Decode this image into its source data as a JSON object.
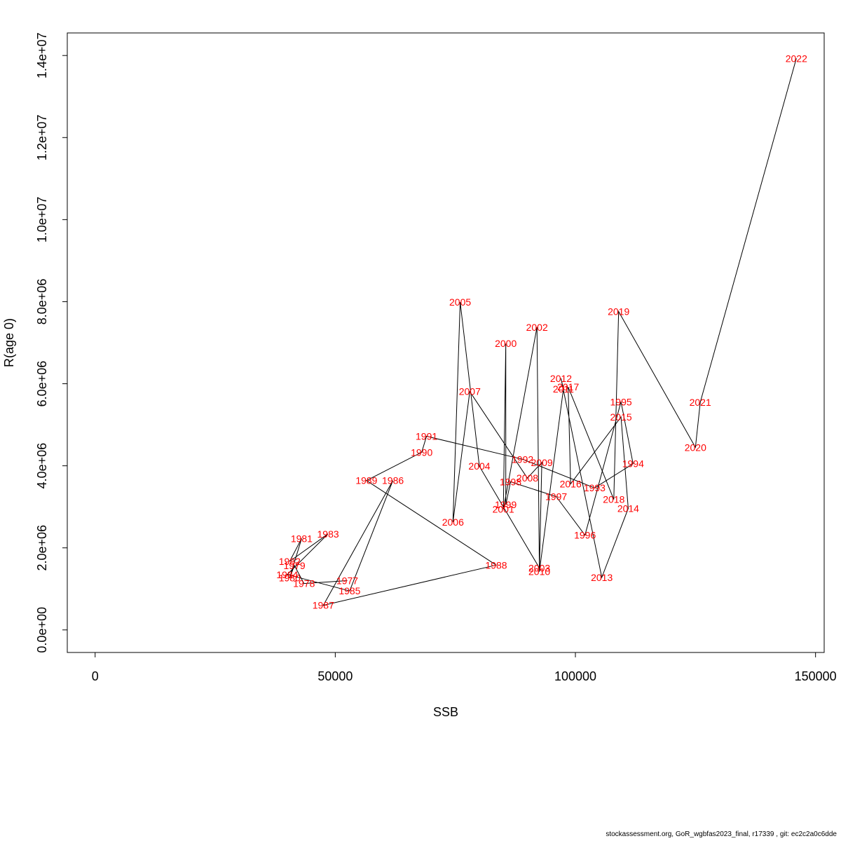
{
  "chart_data": {
    "type": "line",
    "xlabel": "SSB",
    "ylabel": "R(age 0)",
    "xlim": [
      -5800,
      151800
    ],
    "ylim": [
      -550000,
      14550000
    ],
    "x_ticks": [
      0,
      50000,
      100000,
      150000
    ],
    "x_tick_labels": [
      "0",
      "50000",
      "100000",
      "150000"
    ],
    "y_ticks": [
      0,
      2000000,
      4000000,
      6000000,
      8000000,
      10000000,
      12000000,
      14000000
    ],
    "y_tick_labels": [
      "0.0e+00",
      "2.0e+06",
      "4.0e+06",
      "6.0e+06",
      "8.0e+06",
      "1.0e+07",
      "1.2e+07",
      "1.4e+07"
    ],
    "grid": false,
    "legend": "none",
    "line_color": "#000000",
    "label_color": "#ff0000",
    "points": [
      {
        "year": "1977",
        "x": 52500,
        "y": 1200000
      },
      {
        "year": "1978",
        "x": 43500,
        "y": 1130000
      },
      {
        "year": "1979",
        "x": 41500,
        "y": 1570000
      },
      {
        "year": "1980",
        "x": 40500,
        "y": 1270000
      },
      {
        "year": "1981",
        "x": 43000,
        "y": 2230000
      },
      {
        "year": "1982",
        "x": 40500,
        "y": 1670000
      },
      {
        "year": "1983",
        "x": 48500,
        "y": 2340000
      },
      {
        "year": "1984",
        "x": 40000,
        "y": 1350000
      },
      {
        "year": "1985",
        "x": 53000,
        "y": 950000
      },
      {
        "year": "1986",
        "x": 62000,
        "y": 3640000
      },
      {
        "year": "1987",
        "x": 47500,
        "y": 600000
      },
      {
        "year": "1988",
        "x": 83500,
        "y": 1580000
      },
      {
        "year": "1989",
        "x": 56500,
        "y": 3640000
      },
      {
        "year": "1990",
        "x": 68000,
        "y": 4330000
      },
      {
        "year": "1991",
        "x": 69000,
        "y": 4720000
      },
      {
        "year": "1992",
        "x": 89000,
        "y": 4160000
      },
      {
        "year": "1993",
        "x": 104000,
        "y": 3460000
      },
      {
        "year": "1994",
        "x": 112000,
        "y": 4050000
      },
      {
        "year": "1995",
        "x": 109500,
        "y": 5560000
      },
      {
        "year": "1996",
        "x": 102000,
        "y": 2310000
      },
      {
        "year": "1997",
        "x": 96000,
        "y": 3250000
      },
      {
        "year": "1998",
        "x": 86500,
        "y": 3610000
      },
      {
        "year": "1999",
        "x": 85500,
        "y": 3050000
      },
      {
        "year": "2000",
        "x": 85500,
        "y": 6980000
      },
      {
        "year": "2001",
        "x": 85000,
        "y": 2940000
      },
      {
        "year": "2002",
        "x": 92000,
        "y": 7380000
      },
      {
        "year": "2003",
        "x": 92500,
        "y": 1510000
      },
      {
        "year": "2004",
        "x": 80000,
        "y": 3990000
      },
      {
        "year": "2005",
        "x": 76000,
        "y": 7990000
      },
      {
        "year": "2006",
        "x": 74500,
        "y": 2630000
      },
      {
        "year": "2007",
        "x": 78000,
        "y": 5810000
      },
      {
        "year": "2008",
        "x": 90000,
        "y": 3700000
      },
      {
        "year": "2009",
        "x": 93000,
        "y": 4080000
      },
      {
        "year": "2010",
        "x": 92500,
        "y": 1420000
      },
      {
        "year": "2011",
        "x": 97500,
        "y": 5870000
      },
      {
        "year": "2012",
        "x": 97000,
        "y": 6130000
      },
      {
        "year": "2013",
        "x": 105500,
        "y": 1280000
      },
      {
        "year": "2014",
        "x": 111000,
        "y": 2960000
      },
      {
        "year": "2015",
        "x": 109500,
        "y": 5190000
      },
      {
        "year": "2016",
        "x": 99000,
        "y": 3560000
      },
      {
        "year": "2017",
        "x": 98500,
        "y": 5920000
      },
      {
        "year": "2018",
        "x": 108000,
        "y": 3180000
      },
      {
        "year": "2019",
        "x": 109000,
        "y": 7760000
      },
      {
        "year": "2020",
        "x": 125000,
        "y": 4450000
      },
      {
        "year": "2021",
        "x": 126000,
        "y": 5550000
      },
      {
        "year": "2022",
        "x": 146000,
        "y": 13930000
      }
    ]
  },
  "footer": "stockassessment.org, GoR_wgbfas2023_final, r17339 , git: ec2c2a0c6dde"
}
